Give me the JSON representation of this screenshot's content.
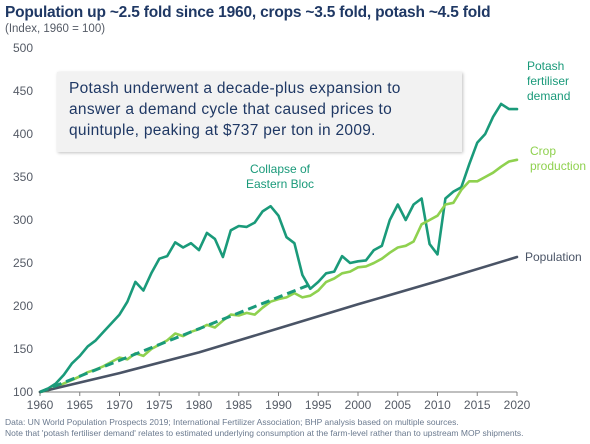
{
  "header": {
    "title": "Population up ~2.5 fold since 1960, crops ~3.5 fold, potash ~4.5 fold",
    "subtitle": "(Index, 1960 = 100)"
  },
  "callout": {
    "text": "Potash underwent a decade-plus  expansion to answer a demand cycle that caused prices to quintuple, peaking at $737 per ton in 2009."
  },
  "annotations": {
    "collapse_line1": "Collapse of",
    "collapse_line2": "Eastern Bloc",
    "potash_line1": "Potash",
    "potash_line2": "fertiliser",
    "potash_line3": "demand",
    "crop_line1": "Crop",
    "crop_line2": "production",
    "population": "Population"
  },
  "footer": {
    "source_line1": "Data: UN World Population Prospects 2019; International Fertilizer Association; BHP analysis based on multiple sources.",
    "source_line2": "Note that 'potash fertiliser demand' relates to estimated underlying consumption at the farm-level rather than to upstream MOP shipments."
  },
  "colors": {
    "potash": "#1a9a7a",
    "crop": "#8fd14f",
    "population": "#4a5466",
    "trend": "#1a9a7a",
    "axis": "#7f7f7f"
  },
  "chart_data": {
    "type": "line",
    "title": "Population up ~2.5 fold since 1960, crops ~3.5 fold, potash ~4.5 fold",
    "ylabel": "(Index, 1960 = 100)",
    "xlim": [
      1960,
      2020
    ],
    "ylim": [
      100,
      500
    ],
    "xticks": [
      1960,
      1965,
      1970,
      1975,
      1980,
      1985,
      1990,
      1995,
      2000,
      2005,
      2010,
      2015,
      2020
    ],
    "yticks": [
      100,
      150,
      200,
      250,
      300,
      350,
      400,
      450,
      500
    ],
    "legend": "none (inline labels)",
    "series": [
      {
        "name": "Potash fertiliser demand",
        "x": [
          1960,
          1961,
          1962,
          1963,
          1964,
          1965,
          1966,
          1967,
          1968,
          1969,
          1970,
          1971,
          1972,
          1973,
          1974,
          1975,
          1976,
          1977,
          1978,
          1979,
          1980,
          1981,
          1982,
          1983,
          1984,
          1985,
          1986,
          1987,
          1988,
          1989,
          1990,
          1991,
          1992,
          1993,
          1994,
          1995,
          1996,
          1997,
          1998,
          1999,
          2000,
          2001,
          2002,
          2003,
          2004,
          2005,
          2006,
          2007,
          2008,
          2009,
          2010,
          2011,
          2012,
          2013,
          2014,
          2015,
          2016,
          2017,
          2018,
          2019,
          2020
        ],
        "y": [
          100,
          104,
          110,
          120,
          133,
          142,
          153,
          160,
          170,
          180,
          190,
          205,
          228,
          218,
          238,
          255,
          258,
          274,
          268,
          273,
          265,
          285,
          278,
          257,
          288,
          293,
          292,
          297,
          310,
          316,
          305,
          280,
          273,
          236,
          220,
          228,
          238,
          240,
          258,
          250,
          252,
          253,
          265,
          270,
          300,
          318,
          300,
          318,
          325,
          272,
          260,
          325,
          333,
          338,
          365,
          390,
          400,
          420,
          435,
          429,
          429
        ],
        "style": "solid"
      },
      {
        "name": "Crop production",
        "x": [
          1960,
          1961,
          1962,
          1963,
          1964,
          1965,
          1966,
          1967,
          1968,
          1969,
          1970,
          1971,
          1972,
          1973,
          1974,
          1975,
          1976,
          1977,
          1978,
          1979,
          1980,
          1981,
          1982,
          1983,
          1984,
          1985,
          1986,
          1987,
          1988,
          1989,
          1990,
          1991,
          1992,
          1993,
          1994,
          1995,
          1996,
          1997,
          1998,
          1999,
          2000,
          2001,
          2002,
          2003,
          2004,
          2005,
          2006,
          2007,
          2008,
          2009,
          2010,
          2011,
          2012,
          2013,
          2014,
          2015,
          2016,
          2017,
          2018,
          2019,
          2020
        ],
        "y": [
          100,
          102,
          105,
          110,
          114,
          118,
          123,
          126,
          130,
          135,
          140,
          138,
          145,
          142,
          150,
          155,
          160,
          168,
          165,
          170,
          173,
          178,
          175,
          183,
          190,
          189,
          192,
          190,
          198,
          205,
          208,
          210,
          215,
          210,
          212,
          218,
          228,
          232,
          238,
          240,
          245,
          246,
          250,
          255,
          262,
          268,
          270,
          275,
          295,
          300,
          305,
          318,
          320,
          335,
          345,
          345,
          350,
          355,
          362,
          368,
          370
        ],
        "style": "solid"
      },
      {
        "name": "Population",
        "x": [
          1960,
          1970,
          1980,
          1990,
          2000,
          2010,
          2020
        ],
        "y": [
          100,
          122,
          146,
          174,
          202,
          229,
          257
        ],
        "style": "solid"
      },
      {
        "name": "Potash trend",
        "x": [
          1960,
          1994
        ],
        "y": [
          100,
          225
        ],
        "style": "dashed"
      }
    ]
  }
}
